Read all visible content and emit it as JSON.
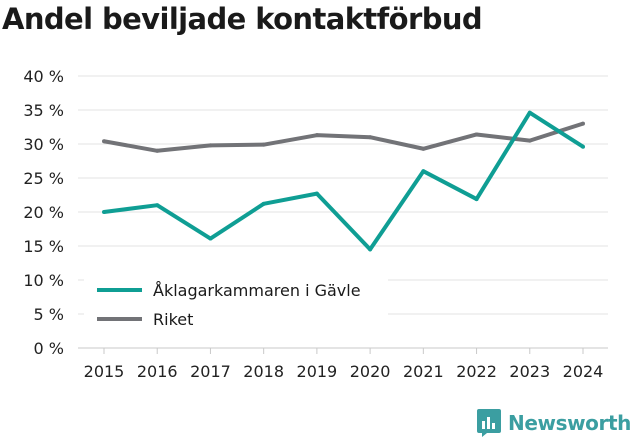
{
  "title": "Andel beviljade kontaktförbud",
  "brand": {
    "name": "Newsworthy",
    "color": "#3b9ea1",
    "icon": "bar-chart-logo-icon"
  },
  "chart_data": {
    "type": "line",
    "title": "Andel beviljade kontaktförbud",
    "x": [
      "2015",
      "2016",
      "2017",
      "2018",
      "2019",
      "2020",
      "2021",
      "2022",
      "2023",
      "2024"
    ],
    "xlabel": "",
    "ylabel": "",
    "ylim": [
      0,
      40
    ],
    "yticks": [
      0,
      5,
      10,
      15,
      20,
      25,
      30,
      35,
      40
    ],
    "ytick_labels": [
      "0 %",
      "5 %",
      "10 %",
      "15 %",
      "20 %",
      "25 %",
      "30 %",
      "35 %",
      "40 %"
    ],
    "grid": true,
    "legend_position": "bottom-left",
    "series": [
      {
        "name": "Åklagarkammaren i Gävle",
        "color": "#0f9e94",
        "values": [
          20.0,
          21.0,
          16.1,
          21.2,
          22.7,
          14.5,
          26.0,
          21.9,
          34.6,
          29.6
        ]
      },
      {
        "name": "Riket",
        "color": "#727377",
        "values": [
          30.4,
          29.0,
          29.8,
          29.9,
          31.3,
          31.0,
          29.3,
          31.4,
          30.5,
          33.0
        ]
      }
    ]
  }
}
